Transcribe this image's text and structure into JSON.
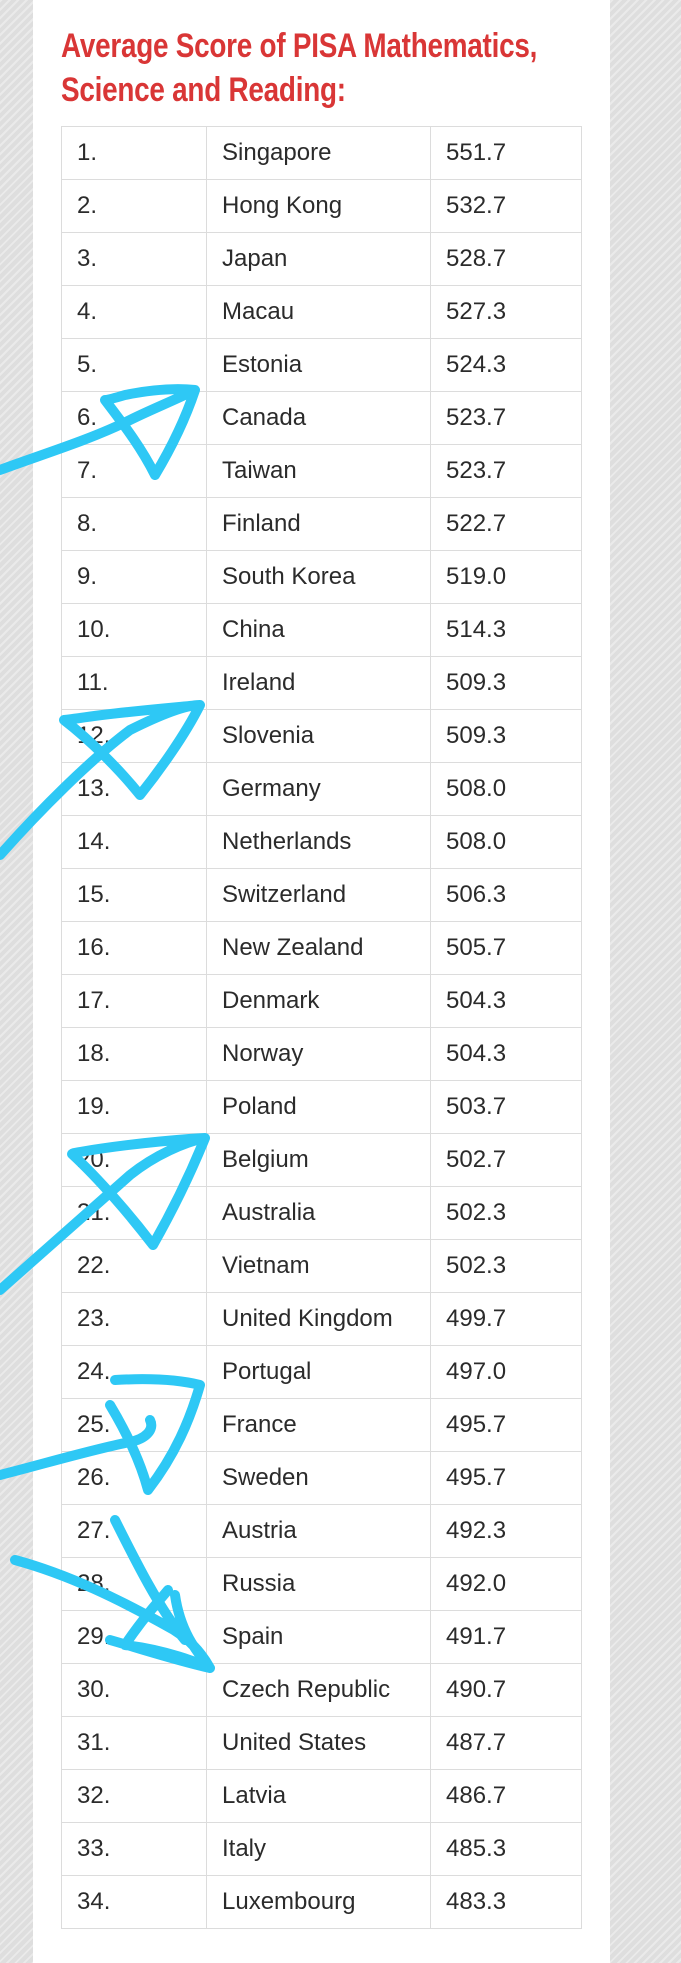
{
  "title_lines": [
    "Average Score of PISA Mathematics,",
    "Science and Reading:"
  ],
  "rows": [
    {
      "rank": "1.",
      "country": "Singapore",
      "score": "551.7"
    },
    {
      "rank": "2.",
      "country": "Hong Kong",
      "score": "532.7"
    },
    {
      "rank": "3.",
      "country": "Japan",
      "score": "528.7"
    },
    {
      "rank": "4.",
      "country": "Macau",
      "score": "527.3"
    },
    {
      "rank": "5.",
      "country": "Estonia",
      "score": "524.3"
    },
    {
      "rank": "6.",
      "country": "Canada",
      "score": "523.7"
    },
    {
      "rank": "7.",
      "country": "Taiwan",
      "score": "523.7"
    },
    {
      "rank": "8.",
      "country": "Finland",
      "score": "522.7"
    },
    {
      "rank": "9.",
      "country": "South Korea",
      "score": "519.0"
    },
    {
      "rank": "10.",
      "country": "China",
      "score": "514.3"
    },
    {
      "rank": "11.",
      "country": "Ireland",
      "score": "509.3"
    },
    {
      "rank": "12.",
      "country": "Slovenia",
      "score": "509.3"
    },
    {
      "rank": "13.",
      "country": "Germany",
      "score": "508.0"
    },
    {
      "rank": "14.",
      "country": "Netherlands",
      "score": "508.0"
    },
    {
      "rank": "15.",
      "country": "Switzerland",
      "score": "506.3"
    },
    {
      "rank": "16.",
      "country": "New Zealand",
      "score": "505.7"
    },
    {
      "rank": "17.",
      "country": "Denmark",
      "score": "504.3"
    },
    {
      "rank": "18.",
      "country": "Norway",
      "score": "504.3"
    },
    {
      "rank": "19.",
      "country": "Poland",
      "score": "503.7"
    },
    {
      "rank": "20.",
      "country": "Belgium",
      "score": "502.7"
    },
    {
      "rank": "21.",
      "country": "Australia",
      "score": "502.3"
    },
    {
      "rank": "22.",
      "country": "Vietnam",
      "score": "502.3"
    },
    {
      "rank": "23.",
      "country": "United Kingdom",
      "score": "499.7"
    },
    {
      "rank": "24.",
      "country": "Portugal",
      "score": "497.0"
    },
    {
      "rank": "25.",
      "country": "France",
      "score": "495.7"
    },
    {
      "rank": "26.",
      "country": "Sweden",
      "score": "495.7"
    },
    {
      "rank": "27.",
      "country": "Austria",
      "score": "492.3"
    },
    {
      "rank": "28.",
      "country": "Russia",
      "score": "492.0"
    },
    {
      "rank": "29.",
      "country": "Spain",
      "score": "491.7"
    },
    {
      "rank": "30.",
      "country": "Czech Republic",
      "score": "490.7"
    },
    {
      "rank": "31.",
      "country": "United States",
      "score": "487.7"
    },
    {
      "rank": "32.",
      "country": "Latvia",
      "score": "486.7"
    },
    {
      "rank": "33.",
      "country": "Italy",
      "score": "485.3"
    },
    {
      "rank": "34.",
      "country": "Luxembourg",
      "score": "483.3"
    }
  ],
  "colors": {
    "title": "#d93636",
    "annotation": "#2ec8f5",
    "grid": "#dcdcdc",
    "text": "#2b2b2b"
  },
  "annotation_icon": "hand-drawn-arrow-icon"
}
